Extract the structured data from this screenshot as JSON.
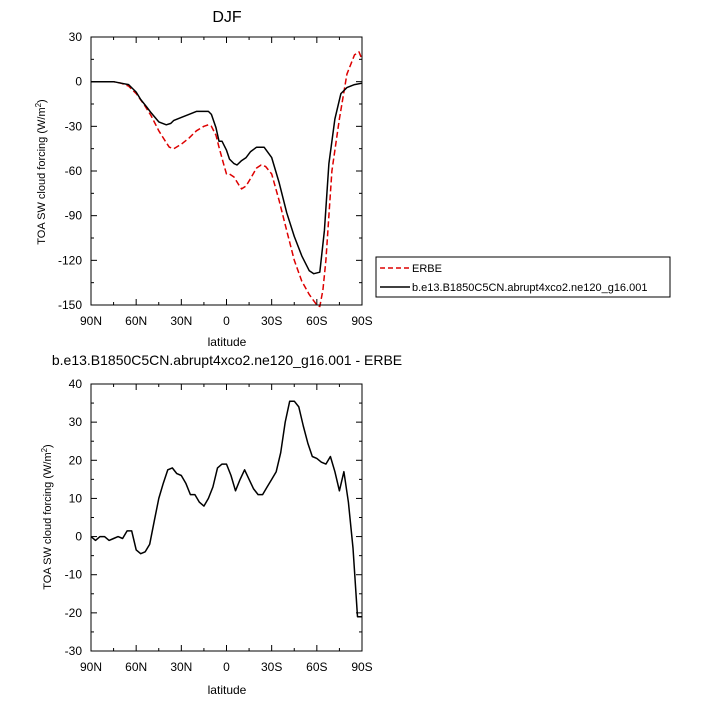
{
  "chart_data": [
    {
      "type": "line",
      "title": "DJF",
      "xlabel": "latitude",
      "ylabel": "TOA SW cloud forcing (W/m²)",
      "x_ticks": [
        "90N",
        "60N",
        "30N",
        "0",
        "30S",
        "60S",
        "90S"
      ],
      "x_tick_values": [
        90,
        60,
        30,
        0,
        -30,
        -60,
        -90
      ],
      "xlim": [
        90,
        -90
      ],
      "y_ticks": [
        "30",
        "0",
        "-30",
        "-60",
        "-90",
        "-120",
        "-150"
      ],
      "y_tick_values": [
        30,
        0,
        -30,
        -60,
        -90,
        -120,
        -150
      ],
      "ylim": [
        -150,
        30
      ],
      "legend": [
        "ERBE",
        "b.e13.B1850C5CN.abrupt4xco2.ne120_g16.001"
      ],
      "series": [
        {
          "name": "ERBE",
          "color": "#dd0000",
          "dash": true,
          "x": [
            90,
            80,
            75,
            70,
            65,
            60,
            55,
            50,
            45,
            40,
            38,
            35,
            30,
            25,
            20,
            15,
            12,
            10,
            7,
            5,
            2,
            0,
            -2,
            -5,
            -8,
            -10,
            -13,
            -16,
            -20,
            -23,
            -26,
            -30,
            -35,
            -40,
            -45,
            -50,
            -55,
            -60,
            -62,
            -64,
            -66,
            -70,
            -75,
            -80,
            -85,
            -88,
            -90
          ],
          "values": [
            0,
            0,
            0,
            -1,
            -3,
            -8,
            -15,
            -23,
            -33,
            -41,
            -44,
            -45,
            -42,
            -38,
            -33,
            -30,
            -29,
            -30,
            -36,
            -44,
            -55,
            -62,
            -62,
            -64,
            -69,
            -72,
            -70,
            -65,
            -58,
            -56,
            -57,
            -62,
            -80,
            -100,
            -120,
            -134,
            -143,
            -150,
            -151,
            -140,
            -120,
            -60,
            -25,
            5,
            18,
            20,
            15
          ]
        },
        {
          "name": "b.e13.B1850C5CN.abrupt4xco2.ne120_g16.001",
          "color": "#000000",
          "dash": false,
          "x": [
            90,
            80,
            75,
            70,
            65,
            60,
            57,
            53,
            50,
            45,
            40,
            37,
            35,
            30,
            25,
            20,
            15,
            12,
            10,
            7,
            5,
            3,
            0,
            -2,
            -5,
            -7,
            -10,
            -13,
            -16,
            -20,
            -25,
            -30,
            -35,
            -40,
            -45,
            -50,
            -55,
            -58,
            -62,
            -65,
            -68,
            -72,
            -76,
            -80,
            -85,
            -90
          ],
          "values": [
            0,
            0,
            0,
            -1,
            -2,
            -7,
            -12,
            -17,
            -21,
            -27,
            -29,
            -28,
            -26,
            -24,
            -22,
            -20,
            -20,
            -20,
            -22,
            -31,
            -40,
            -40,
            -46,
            -52,
            -55,
            -56,
            -53,
            -51,
            -47,
            -44,
            -44,
            -51,
            -68,
            -88,
            -104,
            -117,
            -127,
            -129,
            -128,
            -100,
            -55,
            -25,
            -8,
            -4,
            -2,
            -1
          ]
        }
      ]
    },
    {
      "type": "line",
      "title": "b.e13.B1850C5CN.abrupt4xco2.ne120_g16.001 - ERBE",
      "xlabel": "latitude",
      "ylabel": "TOA SW cloud forcing (W/m²)",
      "x_ticks": [
        "90N",
        "60N",
        "30N",
        "0",
        "30S",
        "60S",
        "90S"
      ],
      "x_tick_values": [
        90,
        60,
        30,
        0,
        -30,
        -60,
        -90
      ],
      "xlim": [
        90,
        -90
      ],
      "y_ticks": [
        "40",
        "30",
        "20",
        "10",
        "0",
        "-10",
        "-20",
        "-30"
      ],
      "y_tick_values": [
        40,
        30,
        20,
        10,
        0,
        -10,
        -20,
        -30
      ],
      "ylim": [
        -30,
        40
      ],
      "series": [
        {
          "name": "b.e13.B1850C5CN.abrupt4xco2.ne120_g16.001 - ERBE",
          "color": "#000000",
          "dash": false,
          "x": [
            90,
            87,
            84,
            81,
            78,
            75,
            72,
            69,
            66,
            63,
            60,
            57,
            54,
            51,
            48,
            45,
            42,
            39,
            36,
            33,
            30,
            27,
            24,
            21,
            18,
            15,
            12,
            9,
            6,
            3,
            0,
            -3,
            -6,
            -9,
            -12,
            -15,
            -18,
            -21,
            -24,
            -27,
            -30,
            -33,
            -36,
            -39,
            -42,
            -45,
            -48,
            -51,
            -54,
            -57,
            -60,
            -63,
            -66,
            -69,
            -72,
            -75,
            -78,
            -81,
            -84,
            -87,
            -90
          ],
          "values": [
            0,
            -1,
            0,
            0,
            -1,
            -0.5,
            0,
            -0.5,
            1.5,
            1.5,
            -3.5,
            -4.5,
            -4,
            -2,
            4,
            10,
            14,
            17.5,
            18,
            16.5,
            16,
            14,
            11,
            11,
            9,
            8,
            10,
            13,
            18,
            19,
            19,
            16,
            12,
            15,
            17.5,
            15,
            12.5,
            11,
            11,
            13,
            15,
            17,
            22,
            30,
            35.5,
            35.5,
            34,
            29,
            24.5,
            21,
            20.5,
            19.5,
            19,
            21,
            17,
            12,
            17,
            9,
            -3,
            -21,
            -21
          ]
        }
      ]
    }
  ]
}
